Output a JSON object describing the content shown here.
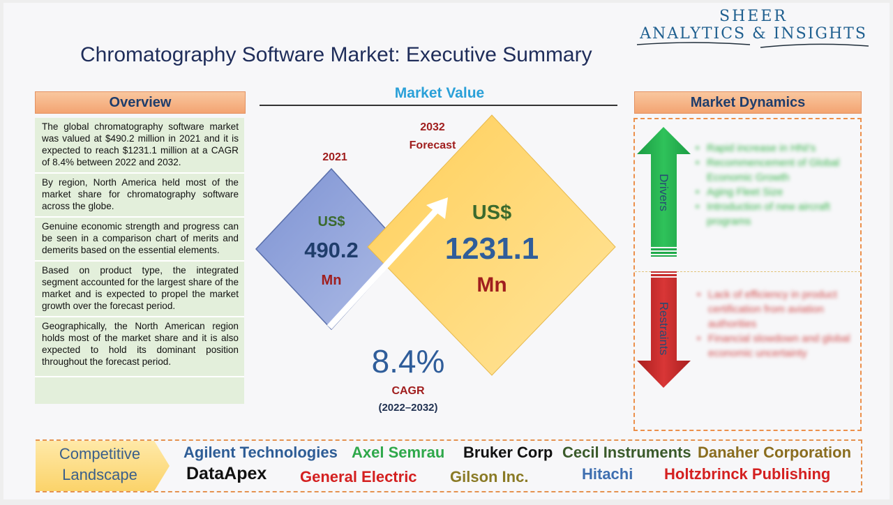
{
  "logo": {
    "line1": "SHEER",
    "line2": "ANALYTICS & INSIGHTS"
  },
  "title": "Chromatography Software Market: Executive Summary",
  "overview": {
    "heading": "Overview",
    "items": [
      "The global chromatography software market was valued at $490.2 million in 2021 and it is expected to reach $1231.1 million at a CAGR of 8.4% between 2022 and 2032.",
      "By region, North America held most of the market share for chromatography software across the globe.",
      "Genuine economic strength and progress can be seen in a comparison chart of merits and demerits based on the essential elements.",
      "Based on product type, the integrated segment accounted for the largest share of the market and is expected to propel the market growth over the forecast period.",
      "Geographically, the North American region holds most of the market share and it is also expected to hold its dominant position throughout the forecast period."
    ]
  },
  "market_value": {
    "heading": "Market Value",
    "y2021": {
      "year": "2021",
      "currency": "US$",
      "value": "490.2",
      "unit": "Mn"
    },
    "y2032": {
      "year": "2032",
      "sub": "Forecast",
      "currency": "US$",
      "value": "1231.1",
      "unit": "Mn"
    },
    "cagr": {
      "value": "8.4%",
      "label": "CAGR",
      "period": "(2022–2032)"
    }
  },
  "market_dynamics": {
    "heading": "Market Dynamics",
    "drivers_label": "Drivers",
    "restraints_label": "Restraints",
    "drivers": [
      "Rapid increase in HNI's",
      "Recommencement of Global Economic Growth",
      "Aging Fleet Size",
      "Introduction of new aircraft programs"
    ],
    "restraints": [
      "Lack of efficiency in product certification from aviation authorities",
      "Financial slowdown and global economic uncertainty"
    ]
  },
  "competitive": {
    "label_line1": "Competitive",
    "label_line2": "Landscape",
    "companies": [
      {
        "name": "Agilent Technologies",
        "color": "#2e5d96"
      },
      {
        "name": "Axel Semrau",
        "color": "#2ea84a"
      },
      {
        "name": "Bruker Corp",
        "color": "#111111"
      },
      {
        "name": "Cecil Instruments",
        "color": "#3a5a2a"
      },
      {
        "name": "Danaher Corporation",
        "color": "#8a6d1f"
      },
      {
        "name": "DataApex",
        "color": "#111111"
      },
      {
        "name": "General Electric",
        "color": "#d42020"
      },
      {
        "name": "Gilson Inc.",
        "color": "#8a7a25"
      },
      {
        "name": "Hitachi",
        "color": "#3f6fb0"
      },
      {
        "name": "Holtzbrinck Publishing",
        "color": "#d42020"
      }
    ]
  },
  "colors": {
    "header_orange": "#f3a472",
    "overview_green": "#e3efdb",
    "diamond_blue": "#8ea2d8",
    "diamond_yellow": "#ffd66b",
    "arrow_green": "#1faa4a",
    "arrow_red": "#c62a2a"
  }
}
